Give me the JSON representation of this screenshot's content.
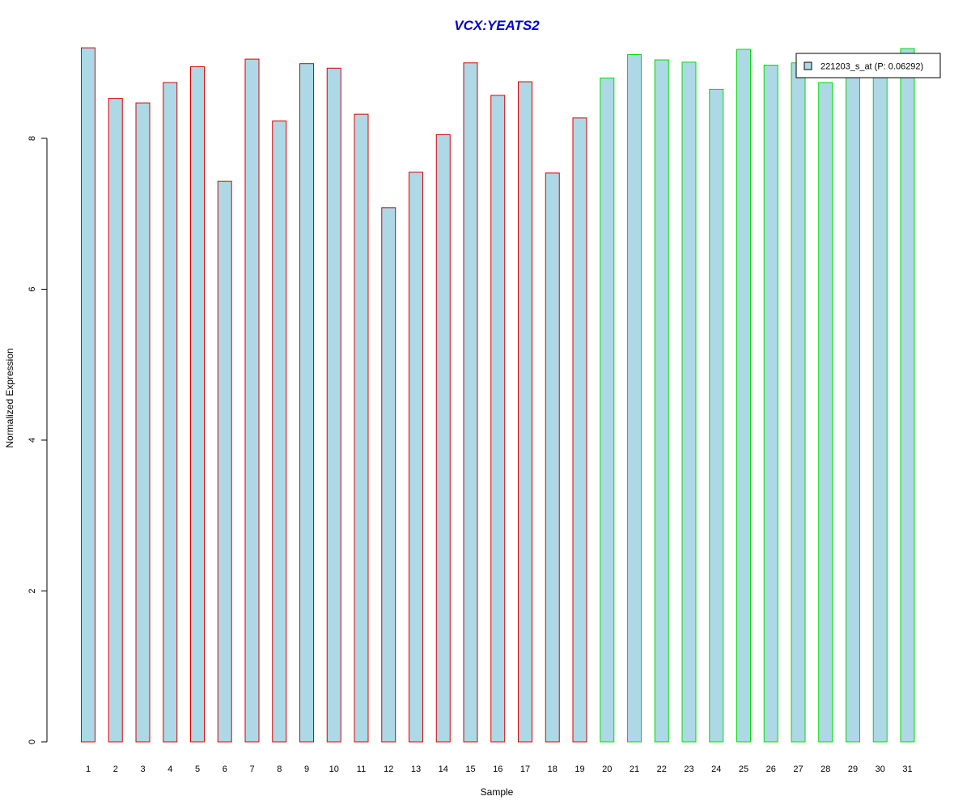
{
  "chart_data": {
    "type": "bar",
    "title": "VCX:YEATS2",
    "xlabel": "Sample",
    "ylabel": "Normalized Expression",
    "categories": [
      "1",
      "2",
      "3",
      "4",
      "5",
      "6",
      "7",
      "8",
      "9",
      "10",
      "11",
      "12",
      "13",
      "14",
      "15",
      "16",
      "17",
      "18",
      "19",
      "20",
      "21",
      "22",
      "23",
      "24",
      "25",
      "26",
      "27",
      "28",
      "29",
      "30",
      "31"
    ],
    "series": [
      {
        "name": "221203_s_at (P: 0.06292)",
        "values": [
          9.2,
          8.53,
          8.47,
          8.74,
          8.95,
          7.43,
          9.05,
          8.23,
          8.99,
          8.93,
          8.32,
          7.08,
          7.55,
          8.05,
          9.0,
          8.57,
          8.75,
          7.54,
          8.27,
          8.8,
          9.11,
          9.04,
          9.01,
          8.65,
          9.18,
          8.97,
          9.0,
          8.74,
          8.93,
          9.1,
          9.19
        ]
      }
    ],
    "ylim": [
      0,
      9.2
    ],
    "yticks": [
      0,
      2,
      4,
      6,
      8
    ],
    "group_border_colors": [
      "#dd0000",
      "#dd0000",
      "#dd0000",
      "#dd0000",
      "#dd0000",
      "#dd0000",
      "#dd0000",
      "#dd0000",
      "#dd0000",
      "#dd0000",
      "#dd0000",
      "#dd0000",
      "#dd0000",
      "#dd0000",
      "#dd0000",
      "#dd0000",
      "#dd0000",
      "#dd0000",
      "#dd0000",
      "#00dd00",
      "#00dd00",
      "#00dd00",
      "#00dd00",
      "#00dd00",
      "#00dd00",
      "#00dd00",
      "#00dd00",
      "#00dd00",
      "#00dd00",
      "#00dd00",
      "#00dd00"
    ],
    "colors": {
      "title": "#0000cc",
      "bar_fill": "#add8e6",
      "axis": "#000000"
    },
    "legend_placement": "top-right",
    "grid": false
  }
}
